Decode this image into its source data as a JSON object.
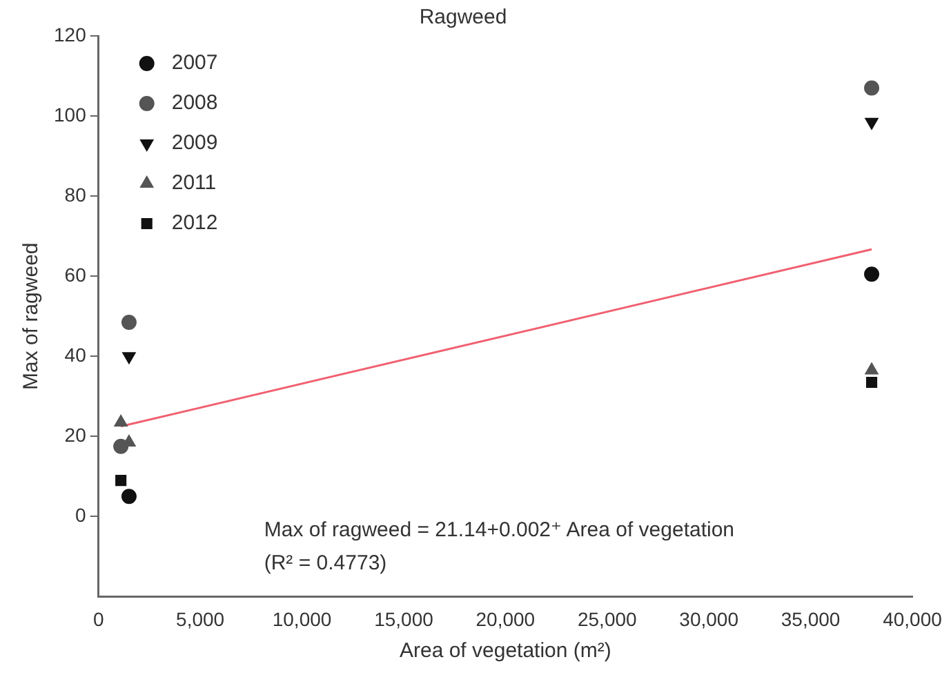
{
  "chart_data": {
    "type": "scatter",
    "title": "Ragweed",
    "xlabel": "Area of vegetation (m²)",
    "ylabel": "Max of ragweed",
    "xlim": [
      0,
      40000
    ],
    "xticks": [
      0,
      {
        "value": 5000,
        "label": "5,000"
      },
      {
        "value": 10000,
        "label": "10,000"
      },
      {
        "value": 15000,
        "label": "15,000"
      },
      {
        "value": 20000,
        "label": "20,000"
      },
      {
        "value": 25000,
        "label": "25,000"
      },
      {
        "value": 30000,
        "label": "30,000"
      },
      {
        "value": 35000,
        "label": "35,000"
      },
      {
        "value": 40000,
        "label": "40,000"
      }
    ],
    "ylim": [
      -20,
      120
    ],
    "yticks": [
      0,
      20,
      40,
      60,
      80,
      100,
      120
    ],
    "grid": false,
    "legend": "top left",
    "series": [
      {
        "name": "2007",
        "color": "#111111",
        "marker": "circle",
        "x": [
          1500,
          38000
        ],
        "values": [
          5,
          60.5
        ]
      },
      {
        "name": "2008",
        "color": "#555555",
        "marker": "circle",
        "x": [
          1500,
          1100,
          38000
        ],
        "values": [
          48.5,
          17.5,
          107
        ]
      },
      {
        "name": "2009",
        "color": "#111111",
        "marker": "triangle-down",
        "x": [
          1500,
          38000
        ],
        "values": [
          40,
          98.5
        ]
      },
      {
        "name": "2011",
        "color": "#555555",
        "marker": "triangle",
        "x": [
          1100,
          1500,
          38000
        ],
        "values": [
          23.5,
          18.5,
          36.5
        ]
      },
      {
        "name": "2012",
        "color": "#111111",
        "marker": "square",
        "x": [
          1100,
          38000
        ],
        "values": [
          9,
          33.5
        ]
      },
      {
        "type": "line",
        "color": "#f06070",
        "marker": "none",
        "x": [
          1100,
          38000
        ],
        "values": [
          22.5,
          66.7
        ]
      }
    ],
    "annotations": [
      "Max of ragweed = 21.14+0.002⁺ Area of vegetation",
      "(R² = 0.4773)"
    ]
  }
}
